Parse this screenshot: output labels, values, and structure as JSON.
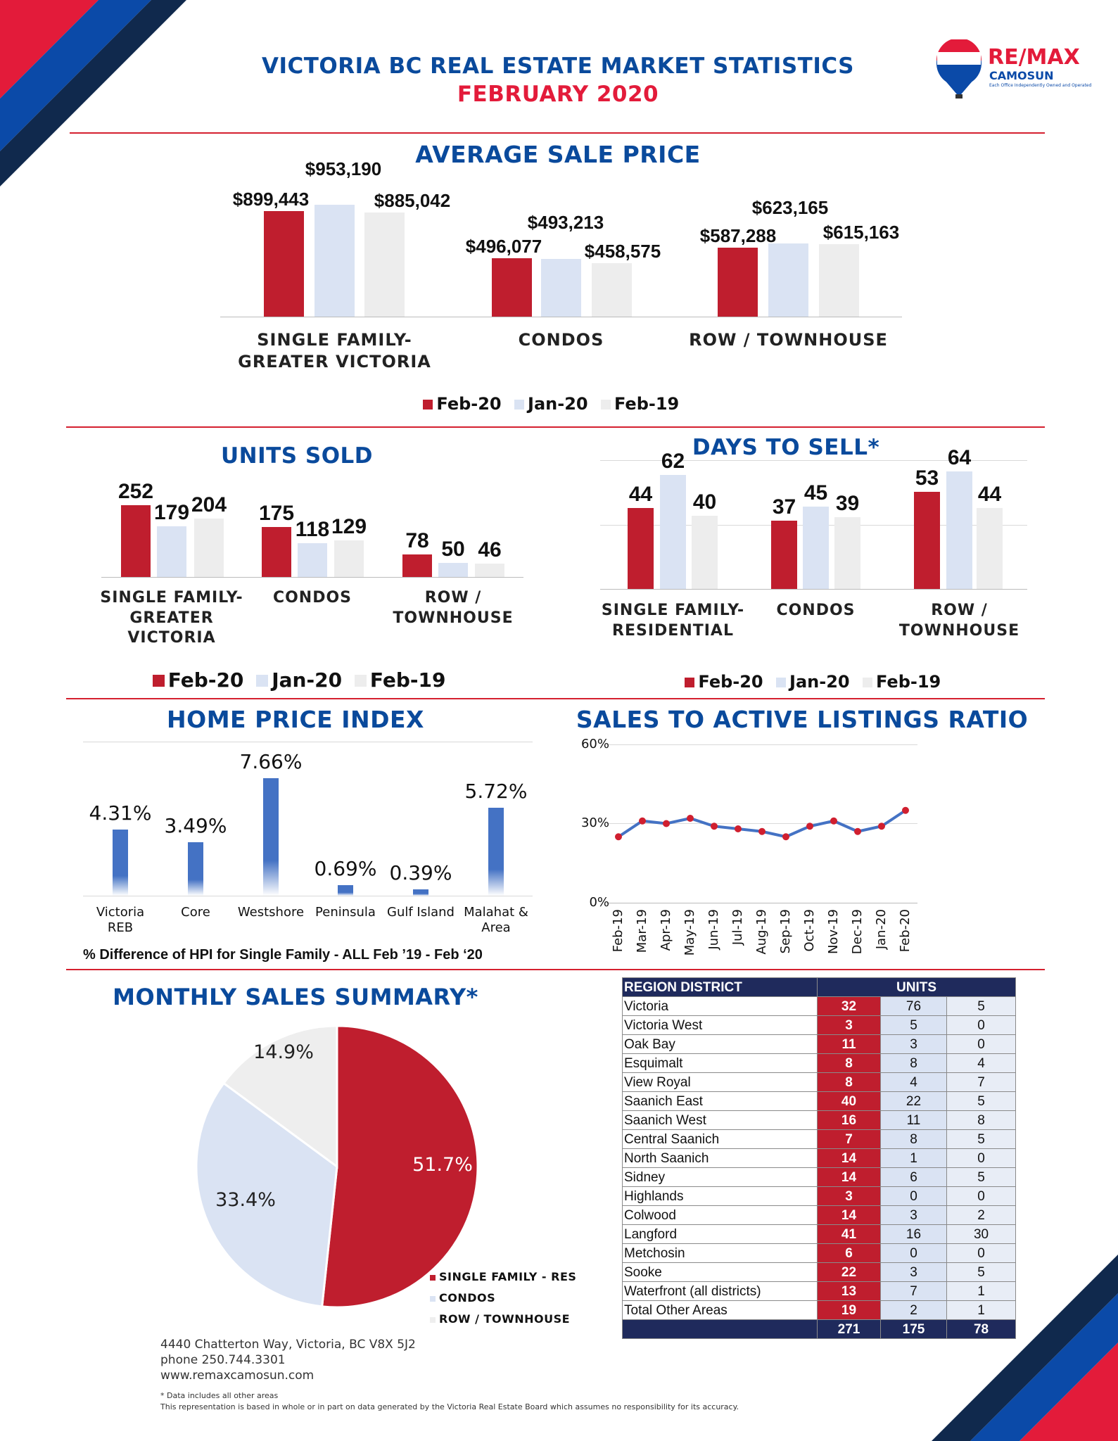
{
  "header": {
    "title": "VICTORIA BC REAL ESTATE MARKET STATISTICS",
    "subtitle": "FEBRUARY 2020"
  },
  "logo": {
    "brand": "RE/MAX",
    "office": "CAMOSUN",
    "tagline": "Each Office Independently Owned and Operated"
  },
  "colors": {
    "feb20": "#bf1e2e",
    "jan20": "#dae3f3",
    "feb19": "#ededed",
    "title": "#0a4a9c",
    "navy": "#1f2a5c",
    "line": "#4472c4"
  },
  "chart_data": [
    {
      "id": "avg",
      "type": "bar",
      "title": "AVERAGE SALE PRICE",
      "categories": [
        "SINGLE FAMILY-\nGREATER VICTORIA",
        "CONDOS",
        "ROW  / TOWNHOUSE"
      ],
      "series": [
        {
          "name": "Feb-20",
          "values": [
            899443,
            496077,
            587288
          ],
          "labels": [
            "$899,443",
            "$496,077",
            "$587,288"
          ]
        },
        {
          "name": "Jan-20",
          "values": [
            953190,
            493213,
            623165
          ],
          "labels": [
            "$953,190",
            "$493,213",
            "$623,165"
          ]
        },
        {
          "name": "Feb-19",
          "values": [
            885042,
            458575,
            615163
          ],
          "labels": [
            "$885,042",
            "$458,575",
            "$615,163"
          ]
        }
      ]
    },
    {
      "id": "units",
      "type": "bar",
      "title": "UNITS SOLD",
      "categories": [
        "SINGLE FAMILY-\nGREATER\nVICTORIA",
        "CONDOS",
        "ROW /\nTOWNHOUSE"
      ],
      "series": [
        {
          "name": "Feb-20",
          "values": [
            252,
            175,
            78
          ]
        },
        {
          "name": "Jan-20",
          "values": [
            179,
            118,
            50
          ]
        },
        {
          "name": "Feb-19",
          "values": [
            204,
            129,
            46
          ]
        }
      ]
    },
    {
      "id": "days",
      "type": "bar",
      "title": "DAYS TO SELL*",
      "categories": [
        "SINGLE FAMILY-\nRESIDENTIAL",
        "CONDOS",
        "ROW /\nTOWNHOUSE"
      ],
      "grid": true,
      "series": [
        {
          "name": "Feb-20",
          "values": [
            44,
            37,
            53
          ]
        },
        {
          "name": "Jan-20",
          "values": [
            62,
            45,
            64
          ]
        },
        {
          "name": "Feb-19",
          "values": [
            40,
            39,
            44
          ]
        }
      ]
    },
    {
      "id": "hpi",
      "type": "bar",
      "title": "HOME PRICE INDEX",
      "categories": [
        "Victoria\nREB",
        "Core",
        "Westshore",
        "Peninsula",
        "Gulf Island",
        "Malahat &\nArea"
      ],
      "values": [
        4.31,
        3.49,
        7.66,
        0.69,
        0.39,
        5.72
      ],
      "labels": [
        "4.31%",
        "3.49%",
        "7.66%",
        "0.69%",
        "0.39%",
        "5.72%"
      ],
      "xlabel": "% Difference of HPI for Single Family - ALL Feb ’19 - Feb ‘20"
    },
    {
      "id": "salr",
      "type": "line",
      "title": "SALES TO ACTIVE LISTINGS RATIO",
      "categories": [
        "Feb-19",
        "Mar-19",
        "Apr-19",
        "May-19",
        "Jun-19",
        "Jul-19",
        "Aug-19",
        "Sep-19",
        "Oct-19",
        "Nov-19",
        "Dec-19",
        "Jan-20",
        "Feb-20"
      ],
      "values": [
        25,
        31,
        30,
        32,
        29,
        28,
        27,
        25,
        29,
        31,
        27,
        29,
        35
      ],
      "ylim": [
        0,
        60
      ],
      "yticks": [
        "0%",
        "30%",
        "60%"
      ],
      "grid": true
    },
    {
      "id": "pie",
      "type": "pie",
      "title": "MONTHLY SALES SUMMARY*",
      "slices": [
        {
          "name": "SINGLE FAMILY - RES",
          "value": 51.7,
          "label": "51.7%"
        },
        {
          "name": "CONDOS",
          "value": 33.4,
          "label": "33.4%"
        },
        {
          "name": "ROW / TOWNHOUSE",
          "value": 14.9,
          "label": "14.9%"
        }
      ]
    }
  ],
  "table": {
    "headers": [
      "REGION DISTRICT",
      "UNITS"
    ],
    "rows": [
      [
        "Victoria",
        "32",
        "76",
        "5"
      ],
      [
        "Victoria West",
        "3",
        "5",
        "0"
      ],
      [
        "Oak Bay",
        "11",
        "3",
        "0"
      ],
      [
        "Esquimalt",
        "8",
        "8",
        "4"
      ],
      [
        "View Royal",
        "8",
        "4",
        "7"
      ],
      [
        "Saanich East",
        "40",
        "22",
        "5"
      ],
      [
        "Saanich West",
        "16",
        "11",
        "8"
      ],
      [
        "Central Saanich",
        "7",
        "8",
        "5"
      ],
      [
        "North Saanich",
        "14",
        "1",
        "0"
      ],
      [
        "Sidney",
        "14",
        "6",
        "5"
      ],
      [
        "Highlands",
        "3",
        "0",
        "0"
      ],
      [
        "Colwood",
        "14",
        "3",
        "2"
      ],
      [
        "Langford",
        "41",
        "16",
        "30"
      ],
      [
        "Metchosin",
        "6",
        "0",
        "0"
      ],
      [
        "Sooke",
        "22",
        "3",
        "5"
      ],
      [
        "Waterfront (all districts)",
        "13",
        "7",
        "1"
      ],
      [
        "Total Other Areas",
        "19",
        "2",
        "1"
      ]
    ],
    "totals": [
      "",
      "271",
      "175",
      "78"
    ]
  },
  "footer": {
    "address": "4440 Chatterton Way, Victoria, BC V8X 5J2",
    "phone": "phone 250.744.3301",
    "web": "www.remaxcamosun.com",
    "note1": "* Data includes all other areas",
    "note2": "This representation is based in whole or in part on data generated by the Victoria Real Estate Board which assumes no responsibility for its accuracy."
  }
}
